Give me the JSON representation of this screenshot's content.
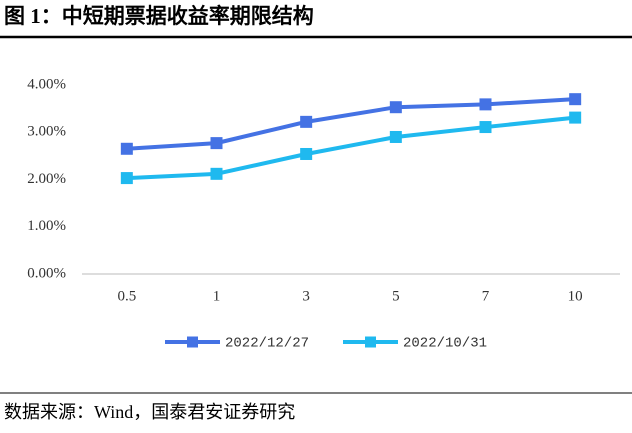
{
  "chart_data": {
    "type": "line",
    "title": "图 1：中短期票据收益率期限结构",
    "source": "数据来源：Wind，国泰君安证券研究",
    "categories": [
      "0.5",
      "1",
      "3",
      "5",
      "7",
      "10"
    ],
    "series": [
      {
        "name": "2022/12/27",
        "color": "#4472e4",
        "values": [
          2.65,
          2.77,
          3.22,
          3.53,
          3.59,
          3.7
        ]
      },
      {
        "name": "2022/10/31",
        "color": "#1fb9ef",
        "values": [
          2.03,
          2.12,
          2.54,
          2.9,
          3.11,
          3.31
        ]
      }
    ],
    "ylim": [
      0,
      4
    ],
    "yticks": [
      {
        "value": 0,
        "label": "0.00%"
      },
      {
        "value": 1,
        "label": "1.00%"
      },
      {
        "value": 2,
        "label": "2.00%"
      },
      {
        "value": 3,
        "label": "3.00%"
      },
      {
        "value": 4,
        "label": "4.00%"
      }
    ],
    "grid": false,
    "legend": "bottom"
  }
}
